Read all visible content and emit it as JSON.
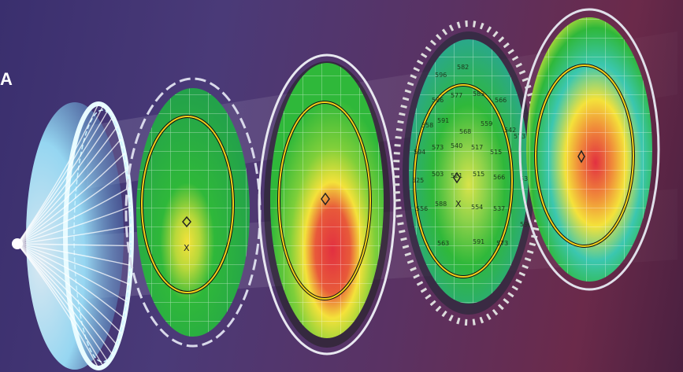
{
  "corner_label": "A",
  "colors": {
    "background_left": "#3a2f6e",
    "background_right": "#6b2a4a",
    "map_green": "#2fb83a",
    "map_yellow": "#f4e23a",
    "map_red": "#e23040",
    "map_teal": "#3bc7b0",
    "ring_yellow": "#f2d21a",
    "lens_glow": "#9fe8ff"
  },
  "layers": [
    {
      "name": "lens-dome",
      "kind": "wireframe-lens"
    },
    {
      "name": "topography-map-1",
      "kind": "color-map",
      "markers": [
        "diamond",
        "x"
      ]
    },
    {
      "name": "topography-map-2",
      "kind": "color-map",
      "markers": [
        "diamond"
      ]
    },
    {
      "name": "topography-map-3",
      "kind": "numeric-grid-map",
      "markers": [
        "diamond",
        "x"
      ]
    },
    {
      "name": "topography-map-4",
      "kind": "color-map",
      "markers": [
        "diamond"
      ]
    }
  ],
  "grid_values": [
    {
      "text": "596"
    },
    {
      "text": "582"
    },
    {
      "text": "586"
    },
    {
      "text": "577"
    },
    {
      "text": "583"
    },
    {
      "text": "566"
    },
    {
      "text": "558"
    },
    {
      "text": "591"
    },
    {
      "text": "568"
    },
    {
      "text": "559"
    },
    {
      "text": "542"
    },
    {
      "text": "594"
    },
    {
      "text": "573"
    },
    {
      "text": "540"
    },
    {
      "text": "517"
    },
    {
      "text": "515"
    },
    {
      "text": "573"
    },
    {
      "text": "525"
    },
    {
      "text": "503"
    },
    {
      "text": "521"
    },
    {
      "text": "515"
    },
    {
      "text": "566"
    },
    {
      "text": "531"
    },
    {
      "text": "556"
    },
    {
      "text": "588"
    },
    {
      "text": "554"
    },
    {
      "text": "537"
    },
    {
      "text": "596"
    },
    {
      "text": "563"
    },
    {
      "text": "591"
    },
    {
      "text": "573"
    }
  ]
}
